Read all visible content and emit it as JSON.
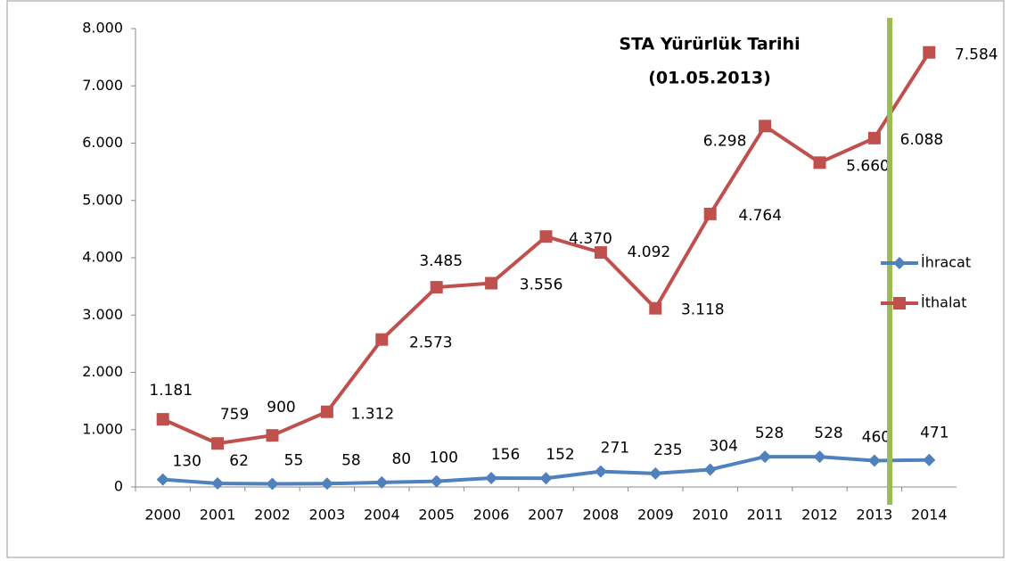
{
  "chart_data": {
    "type": "line",
    "annotations": [
      "STA Yürürlük Tarihi",
      "(01.05.2013)"
    ],
    "categories": [
      "2000",
      "2001",
      "2002",
      "2003",
      "2004",
      "2005",
      "2006",
      "2007",
      "2008",
      "2009",
      "2010",
      "2011",
      "2012",
      "2013",
      "2014"
    ],
    "series": [
      {
        "name": "İhracat",
        "color": "#4f81bd",
        "marker": "diamond",
        "values": [
          130,
          62,
          55,
          58,
          80,
          100,
          156,
          152,
          271,
          235,
          304,
          528,
          528,
          460,
          471
        ]
      },
      {
        "name": "İthalat",
        "color": "#c0504d",
        "marker": "square",
        "values": [
          1181,
          759,
          900,
          1312,
          2573,
          3485,
          3556,
          4370,
          4092,
          3118,
          4764,
          6298,
          5660,
          6088,
          7584
        ],
        "value_labels": [
          "1.181",
          "759",
          "900",
          "1.312",
          "2.573",
          "3.485",
          "3.556",
          "4.370",
          "4.092",
          "3.118",
          "4.764",
          "6.298",
          "5.660",
          "6.088",
          "7.584"
        ]
      }
    ],
    "ylim": [
      0,
      8000
    ],
    "yticks": [
      {
        "value": 0,
        "label": "0"
      },
      {
        "value": 1000,
        "label": "1.000"
      },
      {
        "value": 2000,
        "label": "2.000"
      },
      {
        "value": 3000,
        "label": "3.000"
      },
      {
        "value": 4000,
        "label": "4.000"
      },
      {
        "value": 5000,
        "label": "5.000"
      },
      {
        "value": 6000,
        "label": "6.000"
      },
      {
        "value": 7000,
        "label": "7.000"
      },
      {
        "value": 8000,
        "label": "8.000"
      }
    ],
    "marker_line_color": "#9bbb59",
    "legend": "right"
  }
}
